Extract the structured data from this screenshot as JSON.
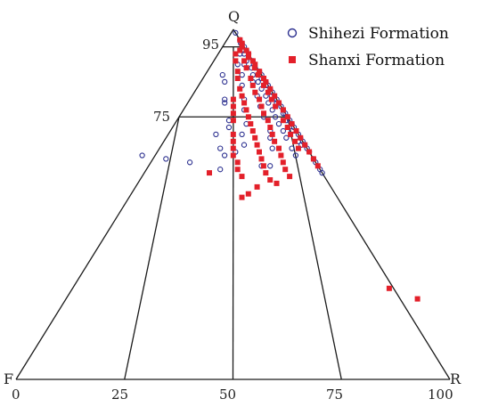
{
  "chart_data": {
    "type": "scatter",
    "diagram": "ternary",
    "vertex_labels": {
      "top": "Q",
      "left": "F",
      "right": "R"
    },
    "q_ticks": [
      {
        "label": "95",
        "value": 95
      },
      {
        "label": "75",
        "value": 75
      }
    ],
    "base_ticks": [
      {
        "label": "0",
        "value": 0
      },
      {
        "label": "25",
        "value": 25
      },
      {
        "label": "50",
        "value": 50
      },
      {
        "label": "75",
        "value": 75
      },
      {
        "label": "100",
        "value": 100
      }
    ],
    "legend_position": "top-right",
    "series": [
      {
        "name": "Shihezi Formation",
        "marker": "open-circle",
        "color": "#2b2f8f",
        "points": [
          [
            99,
            0,
            1
          ],
          [
            97,
            0,
            3
          ],
          [
            96,
            0,
            4
          ],
          [
            95,
            0,
            5
          ],
          [
            94,
            0,
            6
          ],
          [
            93,
            0,
            7
          ],
          [
            91,
            0,
            9
          ],
          [
            88,
            0,
            12
          ],
          [
            87,
            0,
            13
          ],
          [
            86,
            0,
            14
          ],
          [
            85,
            0,
            15
          ],
          [
            84,
            0,
            16
          ],
          [
            83,
            0,
            17
          ],
          [
            82,
            0,
            18
          ],
          [
            80,
            0,
            20
          ],
          [
            79,
            0,
            21
          ],
          [
            78,
            0,
            22
          ],
          [
            77,
            0,
            23
          ],
          [
            76,
            0,
            24
          ],
          [
            75,
            0,
            25
          ],
          [
            74,
            0,
            26
          ],
          [
            73,
            0,
            27
          ],
          [
            72,
            0,
            28
          ],
          [
            70,
            0,
            30
          ],
          [
            69,
            0,
            31
          ],
          [
            68,
            0,
            32
          ],
          [
            67,
            0,
            33
          ],
          [
            66,
            0,
            34
          ],
          [
            65,
            0,
            35
          ],
          [
            63,
            0,
            37
          ],
          [
            62,
            0,
            38
          ],
          [
            60,
            0,
            40
          ],
          [
            59,
            0,
            41
          ],
          [
            96,
            0.3,
            3.7
          ],
          [
            94,
            0.5,
            5.5
          ],
          [
            92,
            0.5,
            7.5
          ],
          [
            90,
            0.3,
            9.7
          ],
          [
            89,
            0.5,
            10.5
          ],
          [
            86,
            0.5,
            13.5
          ],
          [
            84,
            0.5,
            15.5
          ],
          [
            81,
            0.7,
            18.3
          ],
          [
            79,
            0.5,
            20.5
          ],
          [
            76,
            0.5,
            23.5
          ],
          [
            74,
            0.8,
            25.2
          ],
          [
            71,
            1,
            28
          ],
          [
            68,
            1,
            31
          ],
          [
            67,
            0.8,
            32.2
          ],
          [
            93,
            1,
            6
          ],
          [
            91,
            1.5,
            7.5
          ],
          [
            89,
            1.3,
            9.7
          ],
          [
            87,
            2,
            11
          ],
          [
            85,
            1.8,
            13.2
          ],
          [
            83,
            2,
            15
          ],
          [
            81,
            2,
            17
          ],
          [
            79,
            2.4,
            18.6
          ],
          [
            77,
            2.5,
            20.5
          ],
          [
            75,
            2.8,
            22.2
          ],
          [
            73,
            3,
            24
          ],
          [
            71,
            3,
            26
          ],
          [
            69,
            3.3,
            27.7
          ],
          [
            66,
            3.5,
            30.5
          ],
          [
            64,
            3.6,
            32.4
          ],
          [
            93,
            2,
            5
          ],
          [
            90,
            2.5,
            7.5
          ],
          [
            85,
            3,
            12
          ],
          [
            81,
            4,
            15
          ],
          [
            78,
            4.8,
            17.2
          ],
          [
            75,
            5.5,
            19.5
          ],
          [
            71,
            6,
            23
          ],
          [
            69,
            7,
            24
          ],
          [
            66,
            8,
            26
          ],
          [
            61,
            11,
            28
          ],
          [
            90,
            4,
            6
          ],
          [
            87,
            4.5,
            8.5
          ],
          [
            84,
            6,
            10
          ],
          [
            80,
            7.5,
            12.5
          ],
          [
            77,
            9,
            14
          ],
          [
            73,
            10.5,
            16.5
          ],
          [
            70,
            13,
            17
          ],
          [
            67,
            14,
            19
          ],
          [
            65,
            17,
            18
          ],
          [
            61,
            13,
            26
          ],
          [
            87,
            9,
            4
          ],
          [
            85,
            9.5,
            5.5
          ],
          [
            80,
            12,
            8
          ],
          [
            79,
            12.5,
            8.5
          ],
          [
            74,
            14,
            12
          ],
          [
            72,
            15,
            13
          ],
          [
            70,
            19,
            11
          ],
          [
            66,
            20,
            14
          ],
          [
            64,
            20,
            16
          ],
          [
            60,
            23,
            17
          ],
          [
            62,
            29,
            9
          ],
          [
            63,
            34,
            3
          ],
          [
            64,
            39,
            -3
          ]
        ]
      },
      {
        "name": "Shanxi Formation",
        "marker": "filled-square",
        "color": "#e3202a",
        "points": [
          [
            97,
            0,
            3
          ],
          [
            96,
            0,
            4
          ],
          [
            94,
            0,
            6
          ],
          [
            93,
            0,
            7
          ],
          [
            91,
            0,
            9
          ],
          [
            90,
            0,
            10
          ],
          [
            88,
            0,
            12
          ],
          [
            86,
            0,
            14
          ],
          [
            85,
            0,
            15
          ],
          [
            83,
            0,
            17
          ],
          [
            81,
            0,
            19
          ],
          [
            79,
            0,
            21
          ],
          [
            77,
            0,
            23
          ],
          [
            75,
            0,
            25
          ],
          [
            73,
            0,
            27
          ],
          [
            71,
            0,
            29
          ],
          [
            69,
            0,
            31
          ],
          [
            67,
            0,
            33
          ],
          [
            65,
            0,
            35
          ],
          [
            63,
            0,
            37
          ],
          [
            61,
            0,
            39
          ],
          [
            95,
            0.5,
            4.5
          ],
          [
            92,
            0.5,
            7.5
          ],
          [
            89,
            0.6,
            10.4
          ],
          [
            87,
            0.8,
            12.2
          ],
          [
            84,
            1,
            15
          ],
          [
            82,
            1,
            17
          ],
          [
            80,
            1.2,
            18.8
          ],
          [
            78,
            1.3,
            20.7
          ],
          [
            74,
            1.5,
            24.5
          ],
          [
            72,
            1.5,
            26.5
          ],
          [
            70,
            1.8,
            28.2
          ],
          [
            68,
            1.8,
            30.2
          ],
          [
            66,
            2,
            32
          ],
          [
            94,
            1.5,
            4.5
          ],
          [
            91,
            2,
            7
          ],
          [
            89,
            2.5,
            8.5
          ],
          [
            86,
            3,
            11
          ],
          [
            84,
            3.5,
            12.5
          ],
          [
            82,
            4,
            14
          ],
          [
            80,
            4,
            16
          ],
          [
            78,
            4.5,
            17.5
          ],
          [
            76,
            5,
            19
          ],
          [
            74,
            5,
            21
          ],
          [
            72,
            5.5,
            22.5
          ],
          [
            70,
            6,
            24
          ],
          [
            68,
            6.5,
            25.5
          ],
          [
            66,
            6.5,
            27.5
          ],
          [
            64,
            7,
            29
          ],
          [
            62,
            7.5,
            30.5
          ],
          [
            60,
            8,
            32
          ],
          [
            58,
            8,
            34
          ],
          [
            93,
            3,
            4
          ],
          [
            91,
            4,
            5
          ],
          [
            88,
            5,
            7
          ],
          [
            86,
            6,
            8
          ],
          [
            83,
            7,
            10
          ],
          [
            81,
            7.5,
            11.5
          ],
          [
            79,
            8,
            13
          ],
          [
            77,
            8.5,
            14.5
          ],
          [
            75,
            9,
            16
          ],
          [
            73,
            9.5,
            17.5
          ],
          [
            71,
            10,
            19
          ],
          [
            69,
            10.5,
            20.5
          ],
          [
            67,
            11,
            22
          ],
          [
            65,
            11.5,
            23.5
          ],
          [
            63,
            12,
            25
          ],
          [
            61,
            12.5,
            26.5
          ],
          [
            59,
            13,
            28
          ],
          [
            80,
            10,
            10
          ],
          [
            78,
            11,
            11
          ],
          [
            76,
            12,
            12
          ],
          [
            74,
            13,
            13
          ],
          [
            70,
            15,
            15
          ],
          [
            68,
            16,
            16
          ],
          [
            66,
            17,
            17
          ],
          [
            64,
            18,
            18
          ],
          [
            62,
            18,
            20
          ],
          [
            60,
            19,
            21
          ],
          [
            58,
            19,
            23
          ],
          [
            57,
            13,
            30
          ],
          [
            56,
            12,
            32
          ],
          [
            55,
            17,
            28
          ],
          [
            53,
            20,
            27
          ],
          [
            52,
            22,
            26
          ],
          [
            59,
            26,
            15
          ],
          [
            26,
            1,
            73
          ],
          [
            23,
            -4,
            81
          ]
        ]
      }
    ]
  }
}
